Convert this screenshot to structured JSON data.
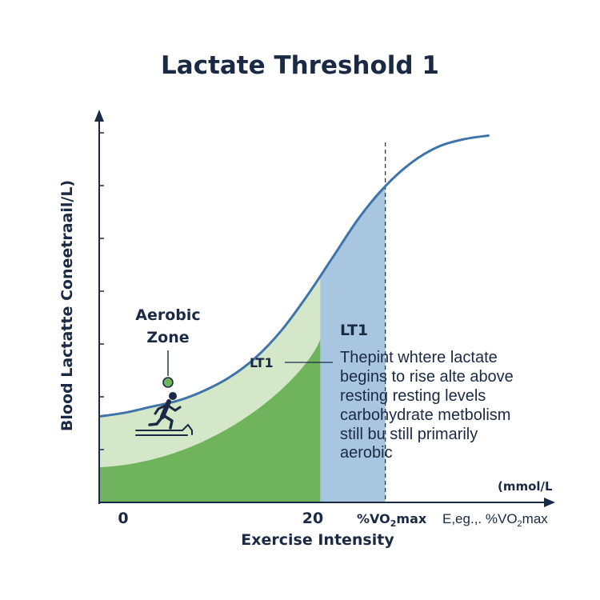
{
  "chart_data": {
    "type": "area",
    "title": "Lactate Threshold 1",
    "xlabel": "Exercise Intensity",
    "ylabel": "Blood Lactatte Coneetraail/L)",
    "y_unit_label": "(mmol/L",
    "x_tick_labels": [
      {
        "x": 0,
        "label": "0"
      },
      {
        "x": 20,
        "label": "20"
      }
    ],
    "x_secondary_labels": {
      "vo2": {
        "prefix": "%VO",
        "sub": "2",
        "suffix": "max"
      },
      "eg": {
        "prefix": "E,eg.,. %VO",
        "sub": "2",
        "suffix": "max"
      }
    },
    "xlim": [
      -2,
      29
    ],
    "ylim": [
      0,
      10
    ],
    "grid": false,
    "curve": {
      "name": "",
      "x": [
        -2,
        0,
        2,
        4,
        6,
        8,
        10,
        12,
        14,
        16,
        18,
        20,
        22,
        24,
        26,
        28
      ],
      "y": [
        2.2,
        2.3,
        2.45,
        2.6,
        2.85,
        3.2,
        3.7,
        4.4,
        5.3,
        6.3,
        7.3,
        8.1,
        8.7,
        9.1,
        9.3,
        9.4
      ]
    },
    "regions": [
      {
        "name": "aerobic-zone",
        "x_range": [
          -2,
          20
        ],
        "color": "#d4e8c9"
      },
      {
        "name": "lower-intensity",
        "x_range": [
          -2,
          15
        ],
        "color": "#6fb35c"
      },
      {
        "name": "lt1-transition",
        "x_range": [
          15,
          20
        ],
        "color": "#a9c6e0"
      }
    ],
    "threshold": {
      "x": 20,
      "label": "LT1"
    },
    "annotations": {
      "zone_label_lines": [
        "Aerobic",
        "Zone"
      ],
      "lt1_heading": "LT1",
      "lt1_description": [
        "Thepint whtere lactate",
        "begins to rise alte above",
        "resting resting levels",
        "carbohydrate metbolism",
        "still bu still primarily",
        "aerobic"
      ]
    },
    "colors": {
      "curve": "#3f74a8",
      "axis": "#1a2a44",
      "marker": "#6fb35c"
    }
  }
}
